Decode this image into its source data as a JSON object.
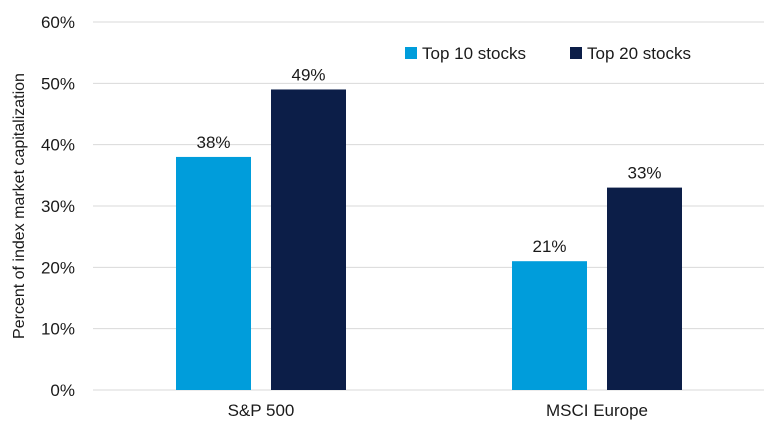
{
  "chart_data": {
    "type": "bar",
    "categories": [
      "S&P 500",
      "MSCI Europe"
    ],
    "series": [
      {
        "name": "Top 10 stocks",
        "values": [
          38,
          21
        ],
        "color": "#009ddb",
        "labels": [
          "38%",
          "21%"
        ]
      },
      {
        "name": "Top 20 stocks",
        "values": [
          49,
          33
        ],
        "color": "#0c1e48",
        "labels": [
          "49%",
          "33%"
        ]
      }
    ],
    "ylabel": "Percent of index market capitalization",
    "ylim": [
      0,
      60
    ],
    "yticks": [
      0,
      10,
      20,
      30,
      40,
      50,
      60
    ],
    "ytick_labels": [
      "0%",
      "10%",
      "20%",
      "30%",
      "40%",
      "50%",
      "60%"
    ],
    "grid": true,
    "gridline_color": "#d9d9d9",
    "legend_position": "top-right"
  }
}
